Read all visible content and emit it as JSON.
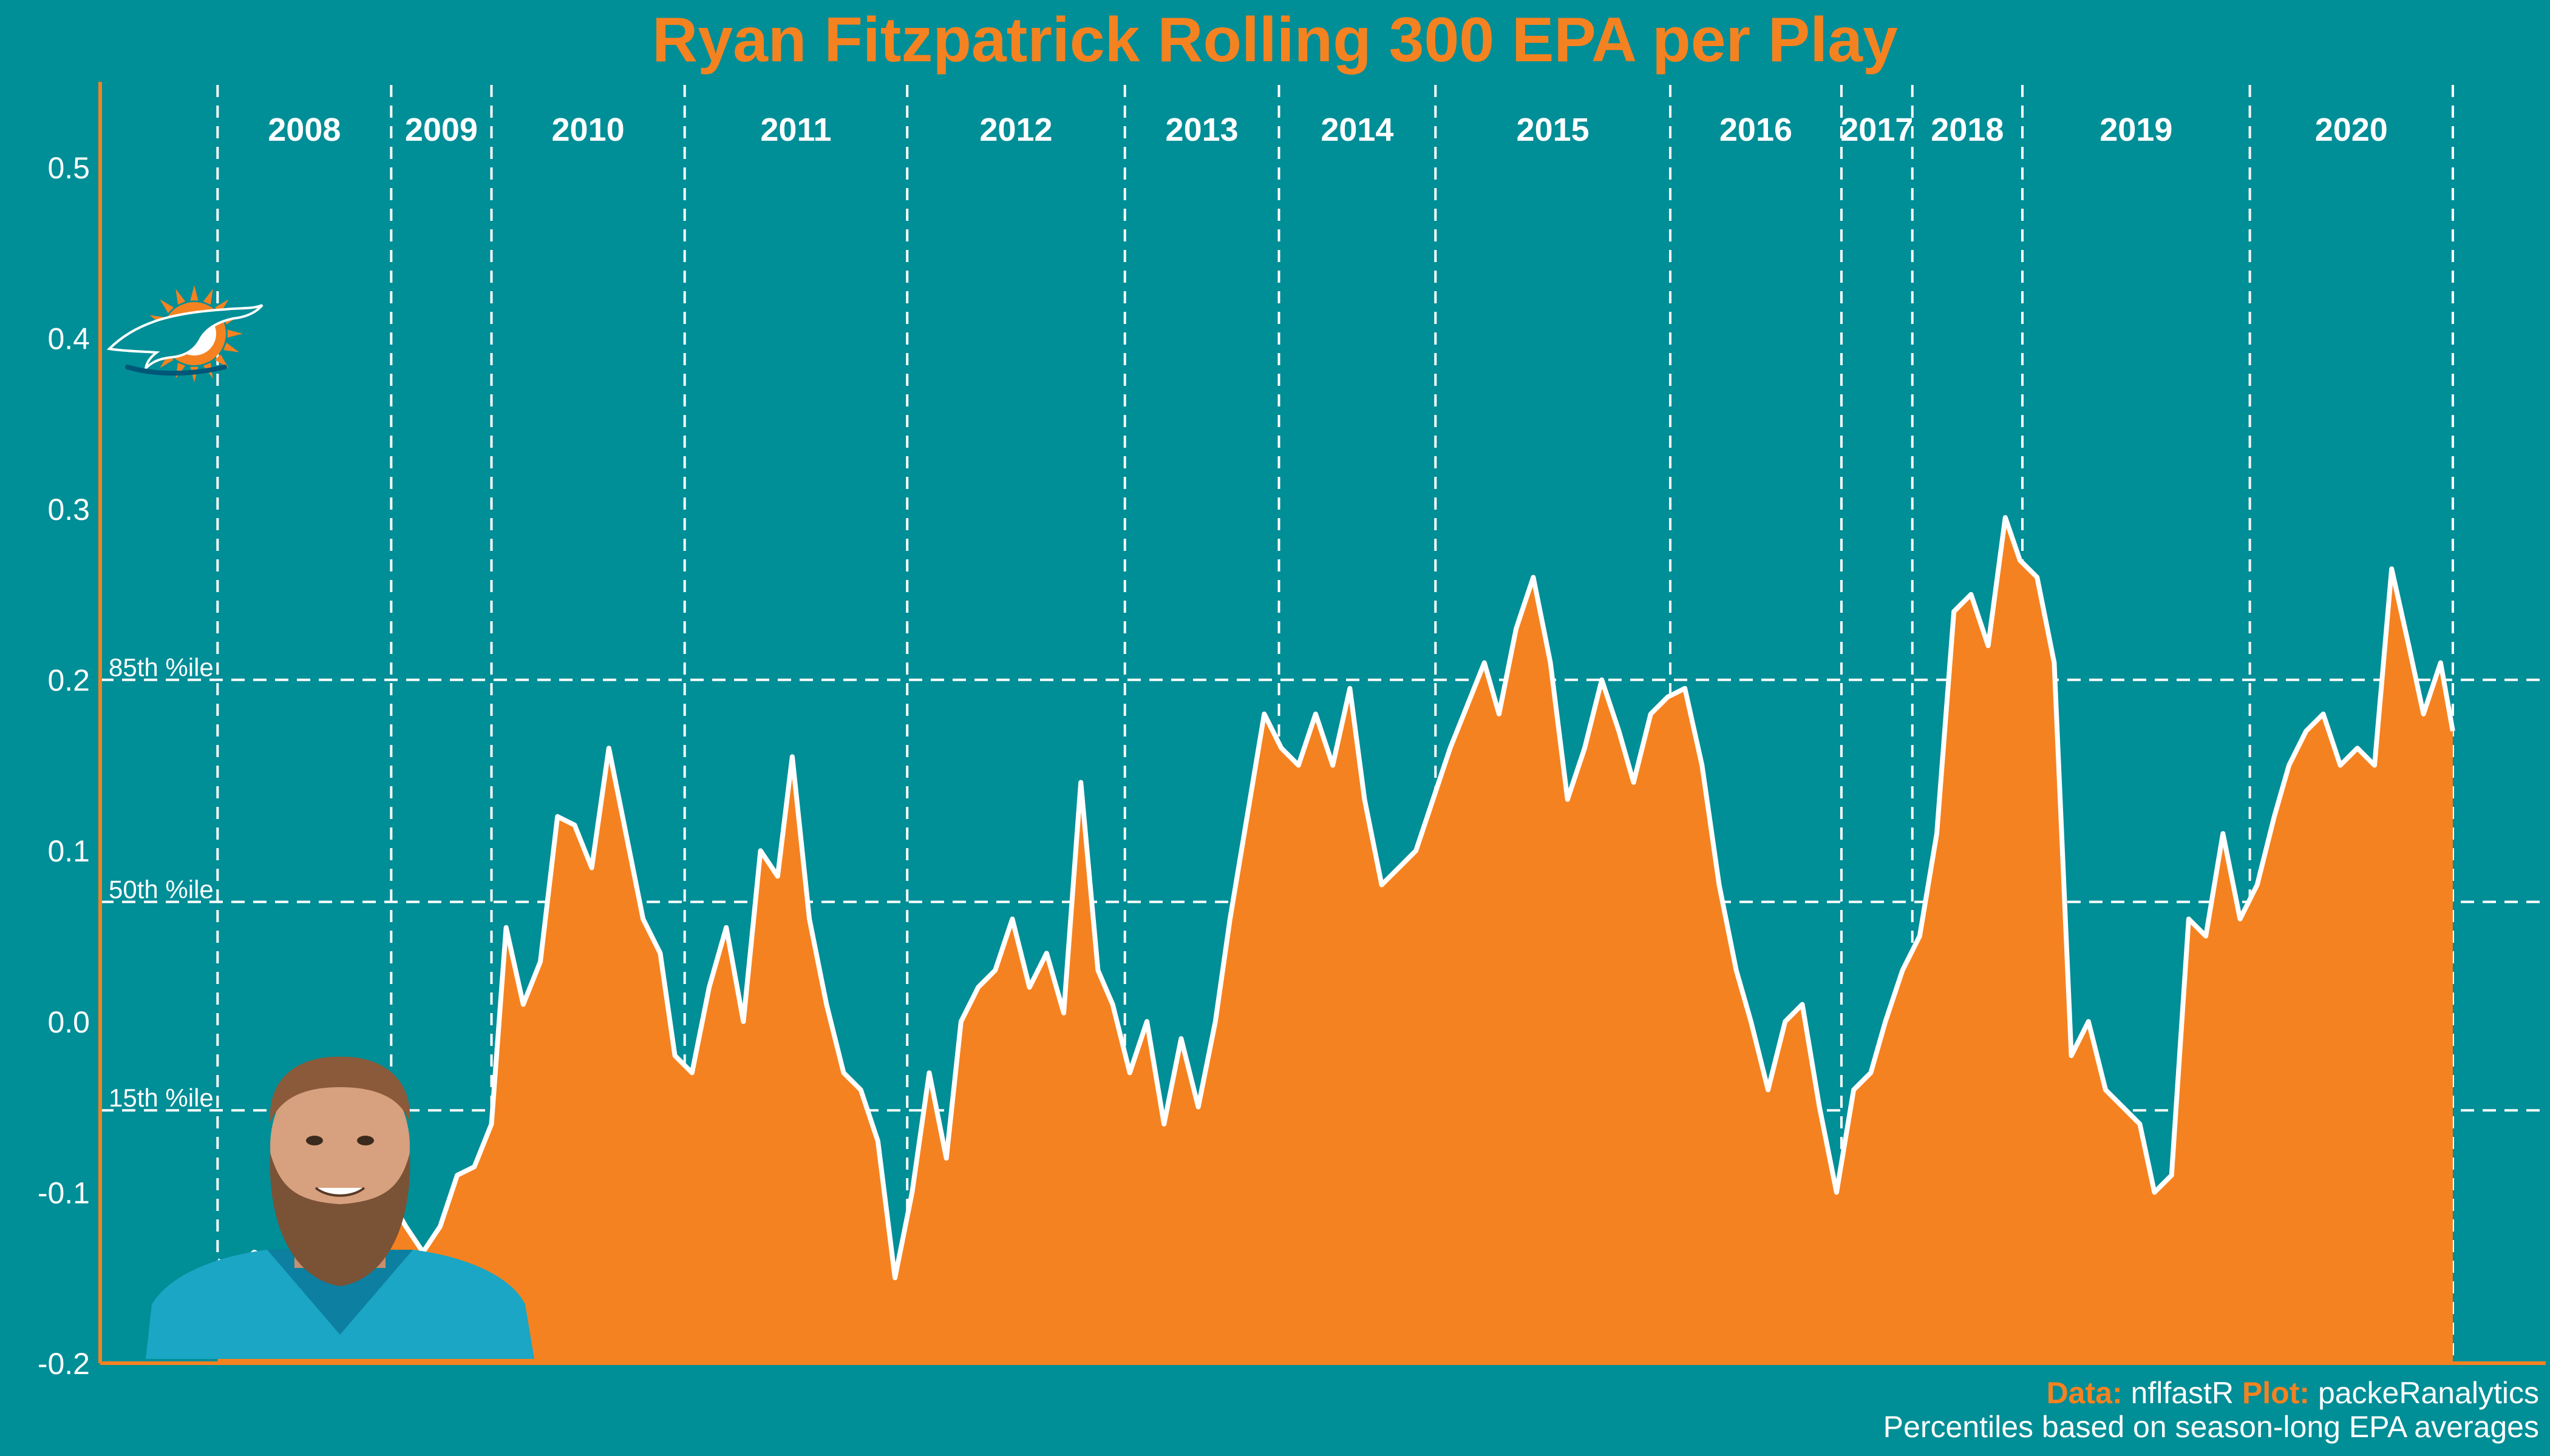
{
  "title": "Ryan Fitzpatrick Rolling 300 EPA per Play",
  "caption": {
    "data_label": "Data:",
    "data_source": "nflfastR",
    "plot_label": "Plot:",
    "plot_author": "packeRanalytics",
    "note": "Percentiles based on season-long EPA averages"
  },
  "colors": {
    "background": "#008E97",
    "area": "#F58220",
    "line": "#FFFFFF",
    "title": "#F58220",
    "axis": "#F58220"
  },
  "icons": {
    "team_logo": "miami-dolphins-logo",
    "player_photo": "ryan-fitzpatrick-headshot"
  },
  "chart_data": {
    "type": "area",
    "title": "Ryan Fitzpatrick Rolling 300 EPA per Play",
    "xlabel": "",
    "ylabel": "",
    "ylim": [
      -0.2,
      0.55
    ],
    "xlim": [
      0,
      100
    ],
    "yticks": [
      -0.2,
      -0.1,
      0.0,
      0.1,
      0.2,
      0.3,
      0.4,
      0.5
    ],
    "ytick_labels": [
      "-0.2",
      "-0.1",
      "0.0",
      "0.1",
      "0.2",
      "0.3",
      "0.4",
      "0.5"
    ],
    "grid": false,
    "seasons": [
      {
        "label": "2008",
        "start": 4.8,
        "end": 11.9
      },
      {
        "label": "2009",
        "start": 11.9,
        "end": 16.0
      },
      {
        "label": "2010",
        "start": 16.0,
        "end": 23.9
      },
      {
        "label": "2011",
        "start": 23.9,
        "end": 33.0
      },
      {
        "label": "2012",
        "start": 33.0,
        "end": 41.9
      },
      {
        "label": "2013",
        "start": 41.9,
        "end": 48.2
      },
      {
        "label": "2014",
        "start": 48.2,
        "end": 54.6
      },
      {
        "label": "2015",
        "start": 54.6,
        "end": 64.2
      },
      {
        "label": "2016",
        "start": 64.2,
        "end": 71.2
      },
      {
        "label": "2017",
        "start": 71.2,
        "end": 74.1
      },
      {
        "label": "2018",
        "start": 74.1,
        "end": 78.6
      },
      {
        "label": "2019",
        "start": 78.6,
        "end": 87.9
      },
      {
        "label": "2020",
        "start": 87.9,
        "end": 96.2
      }
    ],
    "reference_lines": [
      {
        "label": "85th %ile",
        "value": 0.2
      },
      {
        "label": "50th %ile",
        "value": 0.07
      },
      {
        "label": "15th %ile",
        "value": -0.052
      }
    ],
    "series": [
      {
        "name": "Rolling 300 EPA per Play",
        "x": [
          4.8,
          5.5,
          6.3,
          7.0,
          7.6,
          8.3,
          9.0,
          9.7,
          10.4,
          11.2,
          11.9,
          12.5,
          13.2,
          13.9,
          14.6,
          15.3,
          16.0,
          16.6,
          17.3,
          18.0,
          18.7,
          19.4,
          20.1,
          20.8,
          21.5,
          22.2,
          22.9,
          23.5,
          24.2,
          24.9,
          25.6,
          26.3,
          27.0,
          27.7,
          28.3,
          29.0,
          29.7,
          30.4,
          31.1,
          31.8,
          32.5,
          33.2,
          33.9,
          34.6,
          35.2,
          35.9,
          36.6,
          37.3,
          38.0,
          38.7,
          39.4,
          40.1,
          40.8,
          41.4,
          42.1,
          42.8,
          43.5,
          44.2,
          44.9,
          45.6,
          46.2,
          46.9,
          47.6,
          48.3,
          49.0,
          49.7,
          50.4,
          51.1,
          51.7,
          52.4,
          53.1,
          53.8,
          54.5,
          55.2,
          55.9,
          56.6,
          57.2,
          57.9,
          58.6,
          59.3,
          60.0,
          60.7,
          61.4,
          62.1,
          62.7,
          63.4,
          64.1,
          64.8,
          65.5,
          66.2,
          66.9,
          67.5,
          68.2,
          68.9,
          69.6,
          70.3,
          71.0,
          71.7,
          72.4,
          73.0,
          73.7,
          74.4,
          75.1,
          75.8,
          76.5,
          77.2,
          77.9,
          78.5,
          79.2,
          79.9,
          80.6,
          81.3,
          82.0,
          82.7,
          83.4,
          84.0,
          84.7,
          85.4,
          86.1,
          86.8,
          87.5,
          88.2,
          88.9,
          89.5,
          90.2,
          90.9,
          91.6,
          92.3,
          93.0,
          93.7,
          94.4,
          95.0,
          95.7,
          96.2
        ],
        "values": [
          -0.14,
          -0.145,
          -0.135,
          -0.14,
          -0.14,
          -0.145,
          -0.16,
          -0.155,
          -0.15,
          -0.16,
          -0.105,
          -0.12,
          -0.135,
          -0.12,
          -0.09,
          -0.085,
          -0.06,
          0.055,
          0.01,
          0.035,
          0.12,
          0.115,
          0.09,
          0.16,
          0.11,
          0.06,
          0.04,
          -0.02,
          -0.03,
          0.02,
          0.055,
          0.0,
          0.1,
          0.085,
          0.155,
          0.06,
          0.01,
          -0.03,
          -0.04,
          -0.07,
          -0.15,
          -0.1,
          -0.03,
          -0.08,
          0.0,
          0.02,
          0.03,
          0.06,
          0.02,
          0.04,
          0.005,
          0.14,
          0.03,
          0.01,
          -0.03,
          0.0,
          -0.06,
          -0.01,
          -0.05,
          0.0,
          0.06,
          0.12,
          0.18,
          0.16,
          0.15,
          0.18,
          0.15,
          0.195,
          0.13,
          0.08,
          0.09,
          0.1,
          0.13,
          0.16,
          0.185,
          0.21,
          0.18,
          0.23,
          0.26,
          0.21,
          0.13,
          0.16,
          0.2,
          0.17,
          0.14,
          0.18,
          0.19,
          0.195,
          0.15,
          0.08,
          0.03,
          0.0,
          -0.04,
          0.0,
          0.01,
          -0.05,
          -0.1,
          -0.04,
          -0.03,
          0.0,
          0.03,
          0.05,
          0.11,
          0.24,
          0.25,
          0.22,
          0.295,
          0.27,
          0.26,
          0.21,
          -0.02,
          0.0,
          -0.04,
          -0.05,
          -0.06,
          -0.1,
          -0.09,
          0.06,
          0.05,
          0.11,
          0.06,
          0.08,
          0.12,
          0.15,
          0.17,
          0.18,
          0.15,
          0.16,
          0.15,
          0.265,
          0.22,
          0.18,
          0.21,
          0.17
        ]
      }
    ]
  }
}
